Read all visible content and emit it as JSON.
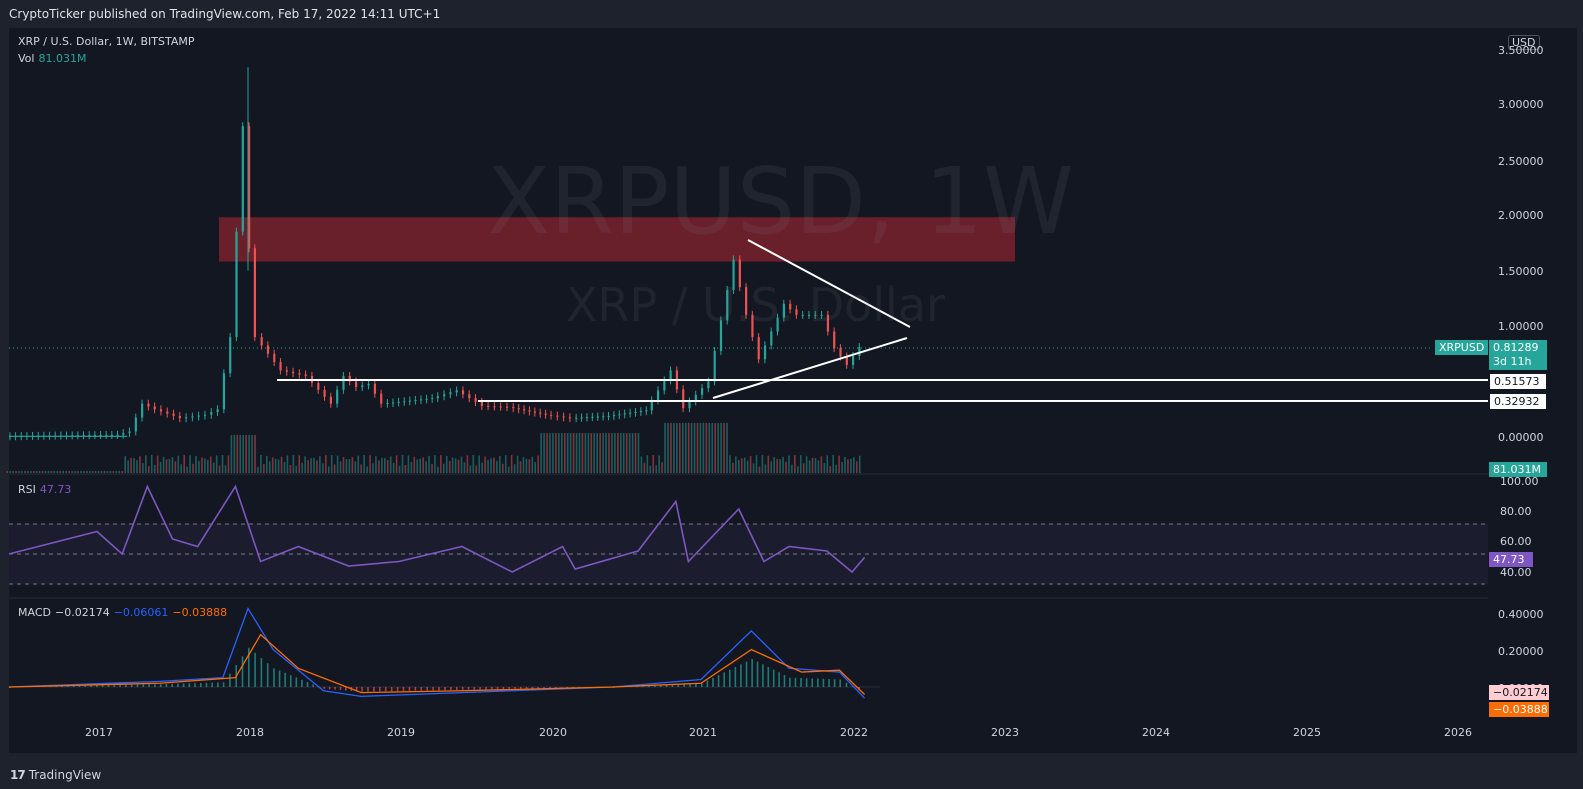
{
  "header": {
    "published": "CryptoTicker published on TradingView.com, Feb 17, 2022 14:11 UTC+1"
  },
  "footer": {
    "brand_mark": "17",
    "brand": "TradingView"
  },
  "legend": {
    "symbol": "XRP / U.S. Dollar, 1W, BITSTAMP",
    "vol_label": "Vol",
    "vol_value": "81.031M",
    "rsi_label": "RSI",
    "rsi_value": "47.73",
    "macd_label": "MACD",
    "macd_value": "−0.02174",
    "macd_signal": "−0.06061",
    "macd_hist": "−0.03888"
  },
  "watermark": {
    "ticker": "XRPUSD, 1W",
    "name": "XRP / U.S. Dollar"
  },
  "price_axis": {
    "currency": "USD",
    "ticks": [
      "3.50000",
      "3.00000",
      "2.50000",
      "2.00000",
      "1.50000",
      "1.00000",
      "0.00000"
    ],
    "last_symbol": "XRPUSD",
    "last_price": "0.81289",
    "countdown": "3d 11h",
    "level_1": "0.51573",
    "level_2": "0.32932",
    "vol_tag": "81.031M",
    "rsi_ticks": [
      "100.00",
      "80.00",
      "60.00",
      "40.00"
    ],
    "rsi_tag": "47.73",
    "macd_ticks": [
      "0.40000",
      "0.20000",
      "0.00000"
    ],
    "macd_tag_1": "−0.02174",
    "macd_tag_2": "−0.03888"
  },
  "time_axis": [
    "2017",
    "2018",
    "2019",
    "2020",
    "2021",
    "2022",
    "2023",
    "2024",
    "2025",
    "2026"
  ],
  "colors": {
    "up": "#26a69a",
    "down": "#ef5350",
    "rsi": "#7e57c2",
    "macd": "#2962ff",
    "signal": "#ff6d00",
    "zone": "#b22833"
  },
  "chart_data": {
    "type": "candlestick",
    "title": "XRP / U.S. Dollar, 1W, BITSTAMP",
    "ylim": [
      0,
      3.5
    ],
    "price_series": [
      [
        "2016-06",
        0.006
      ],
      [
        "2017-03",
        0.02
      ],
      [
        "2017-04",
        0.05
      ],
      [
        "2017-05",
        0.3
      ],
      [
        "2017-06",
        0.25
      ],
      [
        "2017-08",
        0.17
      ],
      [
        "2017-10",
        0.2
      ],
      [
        "2017-11",
        0.25
      ],
      [
        "2017-12",
        0.9
      ],
      [
        "2018-01",
        2.8
      ],
      [
        "2018-01-15",
        1.7
      ],
      [
        "2018-02",
        0.9
      ],
      [
        "2018-04",
        0.6
      ],
      [
        "2018-06",
        0.55
      ],
      [
        "2018-08",
        0.3
      ],
      [
        "2018-09",
        0.55
      ],
      [
        "2018-10",
        0.45
      ],
      [
        "2018-11",
        0.48
      ],
      [
        "2018-12",
        0.3
      ],
      [
        "2019-04",
        0.35
      ],
      [
        "2019-06",
        0.42
      ],
      [
        "2019-08",
        0.28
      ],
      [
        "2019-10",
        0.27
      ],
      [
        "2020-01",
        0.2
      ],
      [
        "2020-03",
        0.17
      ],
      [
        "2020-06",
        0.19
      ],
      [
        "2020-09",
        0.24
      ],
      [
        "2020-11",
        0.6
      ],
      [
        "2020-12",
        0.26
      ],
      [
        "2021-02",
        0.5
      ],
      [
        "2021-04",
        1.6
      ],
      [
        "2021-05",
        1.1
      ],
      [
        "2021-06",
        0.7
      ],
      [
        "2021-08",
        1.2
      ],
      [
        "2021-09",
        1.1
      ],
      [
        "2021-11",
        1.1
      ],
      [
        "2021-12",
        0.8
      ],
      [
        "2022-01",
        0.65
      ],
      [
        "2022-02",
        0.81
      ]
    ],
    "last_price": 0.81289,
    "horizontal_levels": [
      0.51573,
      0.32932
    ],
    "resistance_zone": [
      1.58,
      1.98
    ],
    "rsi": {
      "ylim": [
        30,
        100
      ],
      "bands": [
        70,
        50,
        30
      ],
      "last": 47.73,
      "series": [
        [
          "2016-06",
          50
        ],
        [
          "2017-01",
          65
        ],
        [
          "2017-03",
          50
        ],
        [
          "2017-05",
          95
        ],
        [
          "2017-07",
          60
        ],
        [
          "2017-09",
          55
        ],
        [
          "2017-12",
          95
        ],
        [
          "2018-02",
          45
        ],
        [
          "2018-05",
          55
        ],
        [
          "2018-09",
          42
        ],
        [
          "2019-01",
          45
        ],
        [
          "2019-06",
          55
        ],
        [
          "2019-10",
          38
        ],
        [
          "2020-02",
          55
        ],
        [
          "2020-03",
          40
        ],
        [
          "2020-08",
          52
        ],
        [
          "2020-11",
          85
        ],
        [
          "2020-12",
          45
        ],
        [
          "2021-04",
          80
        ],
        [
          "2021-06",
          45
        ],
        [
          "2021-08",
          55
        ],
        [
          "2021-11",
          52
        ],
        [
          "2022-01",
          38
        ],
        [
          "2022-02",
          47.73
        ]
      ]
    },
    "macd": {
      "ylim": [
        -0.06,
        0.45
      ],
      "values": [
        -0.02174,
        -0.06061,
        -0.03888
      ],
      "macd_series": [
        [
          "2016-06",
          0
        ],
        [
          "2017-06",
          0.03
        ],
        [
          "2017-11",
          0.05
        ],
        [
          "2018-01",
          0.42
        ],
        [
          "2018-03",
          0.2
        ],
        [
          "2018-07",
          -0.02
        ],
        [
          "2018-10",
          -0.05
        ],
        [
          "2019-06",
          -0.03
        ],
        [
          "2020-06",
          0
        ],
        [
          "2021-01",
          0.04
        ],
        [
          "2021-05",
          0.3
        ],
        [
          "2021-08",
          0.1
        ],
        [
          "2021-12",
          0.08
        ],
        [
          "2022-02",
          -0.06
        ]
      ],
      "signal_series": [
        [
          "2016-06",
          0
        ],
        [
          "2017-06",
          0.02
        ],
        [
          "2017-12",
          0.05
        ],
        [
          "2018-02",
          0.28
        ],
        [
          "2018-05",
          0.1
        ],
        [
          "2018-10",
          -0.03
        ],
        [
          "2019-06",
          -0.02
        ],
        [
          "2020-06",
          0
        ],
        [
          "2021-01",
          0.02
        ],
        [
          "2021-05",
          0.2
        ],
        [
          "2021-09",
          0.08
        ],
        [
          "2021-12",
          0.09
        ],
        [
          "2022-02",
          -0.04
        ]
      ]
    }
  }
}
